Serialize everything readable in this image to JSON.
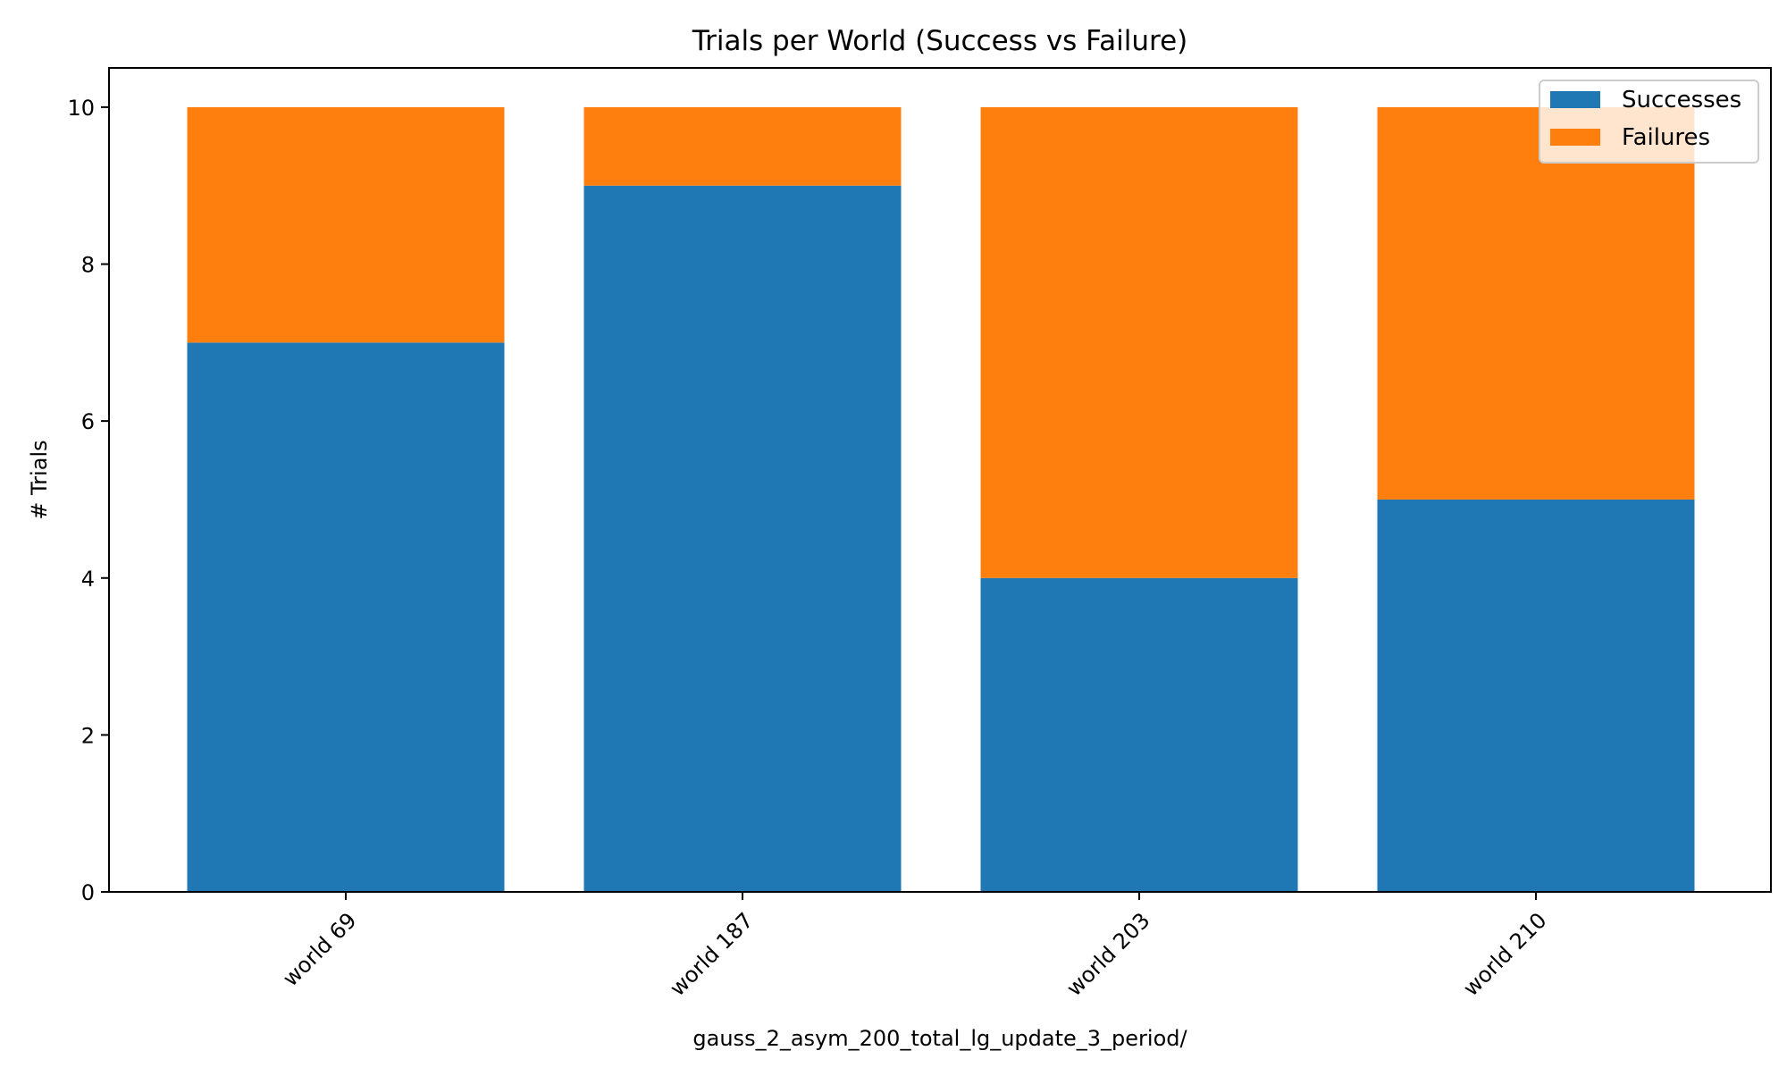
{
  "chart_data": {
    "type": "bar",
    "stacked": true,
    "title": "Trials per World (Success vs Failure)",
    "xlabel": "gauss_2_asym_200_total_lg_update_3_period/",
    "ylabel": "# Trials",
    "categories": [
      "world 69",
      "world 187",
      "world 203",
      "world 210"
    ],
    "series": [
      {
        "name": "Successes",
        "values": [
          7,
          9,
          4,
          5
        ],
        "color": "#1f77b4"
      },
      {
        "name": "Failures",
        "values": [
          3,
          1,
          6,
          5
        ],
        "color": "#ff7f0e"
      }
    ],
    "ylim": [
      0,
      10.5
    ],
    "yticks": [
      0,
      2,
      4,
      6,
      8,
      10
    ],
    "ytick_labels": [
      "0",
      "2",
      "4",
      "6",
      "8",
      "10"
    ],
    "grid": false,
    "legend_position": "top-right"
  }
}
